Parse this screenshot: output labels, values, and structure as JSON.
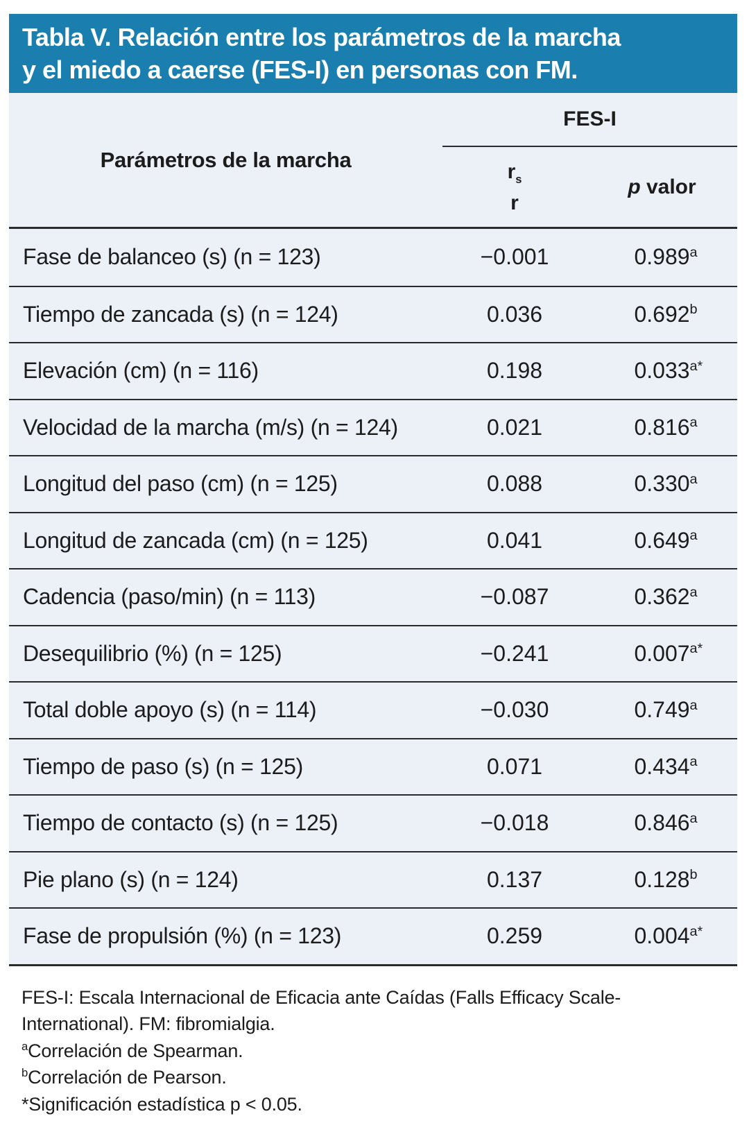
{
  "title": {
    "line1": "Tabla V. Relación entre los parámetros de la marcha",
    "line2": "y el miedo a caerse (FES-I) en personas con FM."
  },
  "table": {
    "col_param_header": "Parámetros de la marcha",
    "group_header": "FES-I",
    "sub_r": {
      "base": "r",
      "sub": "s",
      "line2": "r"
    },
    "sub_p": {
      "italic": "p",
      "rest": " valor"
    },
    "rows": [
      {
        "param": "Fase de balanceo (s) (n = 123)",
        "rs": "−0.001",
        "p": "0.989",
        "p_sup": "a"
      },
      {
        "param": "Tiempo de zancada (s) (n = 124)",
        "rs": "0.036",
        "p": "0.692",
        "p_sup": "b"
      },
      {
        "param": "Elevación (cm) (n = 116)",
        "rs": "0.198",
        "p": "0.033",
        "p_sup": "a*"
      },
      {
        "param": "Velocidad de la marcha (m/s) (n = 124)",
        "rs": "0.021",
        "p": "0.816",
        "p_sup": "a"
      },
      {
        "param": "Longitud del paso (cm) (n = 125)",
        "rs": "0.088",
        "p": "0.330",
        "p_sup": "a"
      },
      {
        "param": "Longitud de zancada (cm) (n = 125)",
        "rs": "0.041",
        "p": "0.649",
        "p_sup": "a"
      },
      {
        "param": "Cadencia (paso/min) (n = 113)",
        "rs": "−0.087",
        "p": "0.362",
        "p_sup": "a"
      },
      {
        "param": "Desequilibrio (%) (n = 125)",
        "rs": "−0.241",
        "p": "0.007",
        "p_sup": "a*"
      },
      {
        "param": "Total doble apoyo (s) (n = 114)",
        "rs": "−0.030",
        "p": "0.749",
        "p_sup": "a"
      },
      {
        "param": "Tiempo de paso (s) (n = 125)",
        "rs": "0.071",
        "p": "0.434",
        "p_sup": "a"
      },
      {
        "param": "Tiempo de contacto (s) (n = 125)",
        "rs": "−0.018",
        "p": "0.846",
        "p_sup": "a"
      },
      {
        "param": "Pie plano (s) (n = 124)",
        "rs": "0.137",
        "p": "0.128",
        "p_sup": "b"
      },
      {
        "param": "Fase de propulsión (%) (n = 123)",
        "rs": "0.259",
        "p": "0.004",
        "p_sup": "a*"
      }
    ]
  },
  "footnotes": {
    "abbrev_line1": "FES-I: Escala Internacional de Eficacia ante Caídas (Falls Efficacy Scale-",
    "abbrev_line2": "International). FM: fibromialgia.",
    "notes": [
      {
        "marker": "a",
        "text": "Correlación de Spearman."
      },
      {
        "marker": "b",
        "text": "Correlación de Pearson."
      },
      {
        "marker": "",
        "text": "*Significación estadística p < 0.05."
      }
    ]
  },
  "colors": {
    "banner": "#1a7fae",
    "table_bg": "#ecf0f7",
    "line": "#2b2b2b"
  }
}
